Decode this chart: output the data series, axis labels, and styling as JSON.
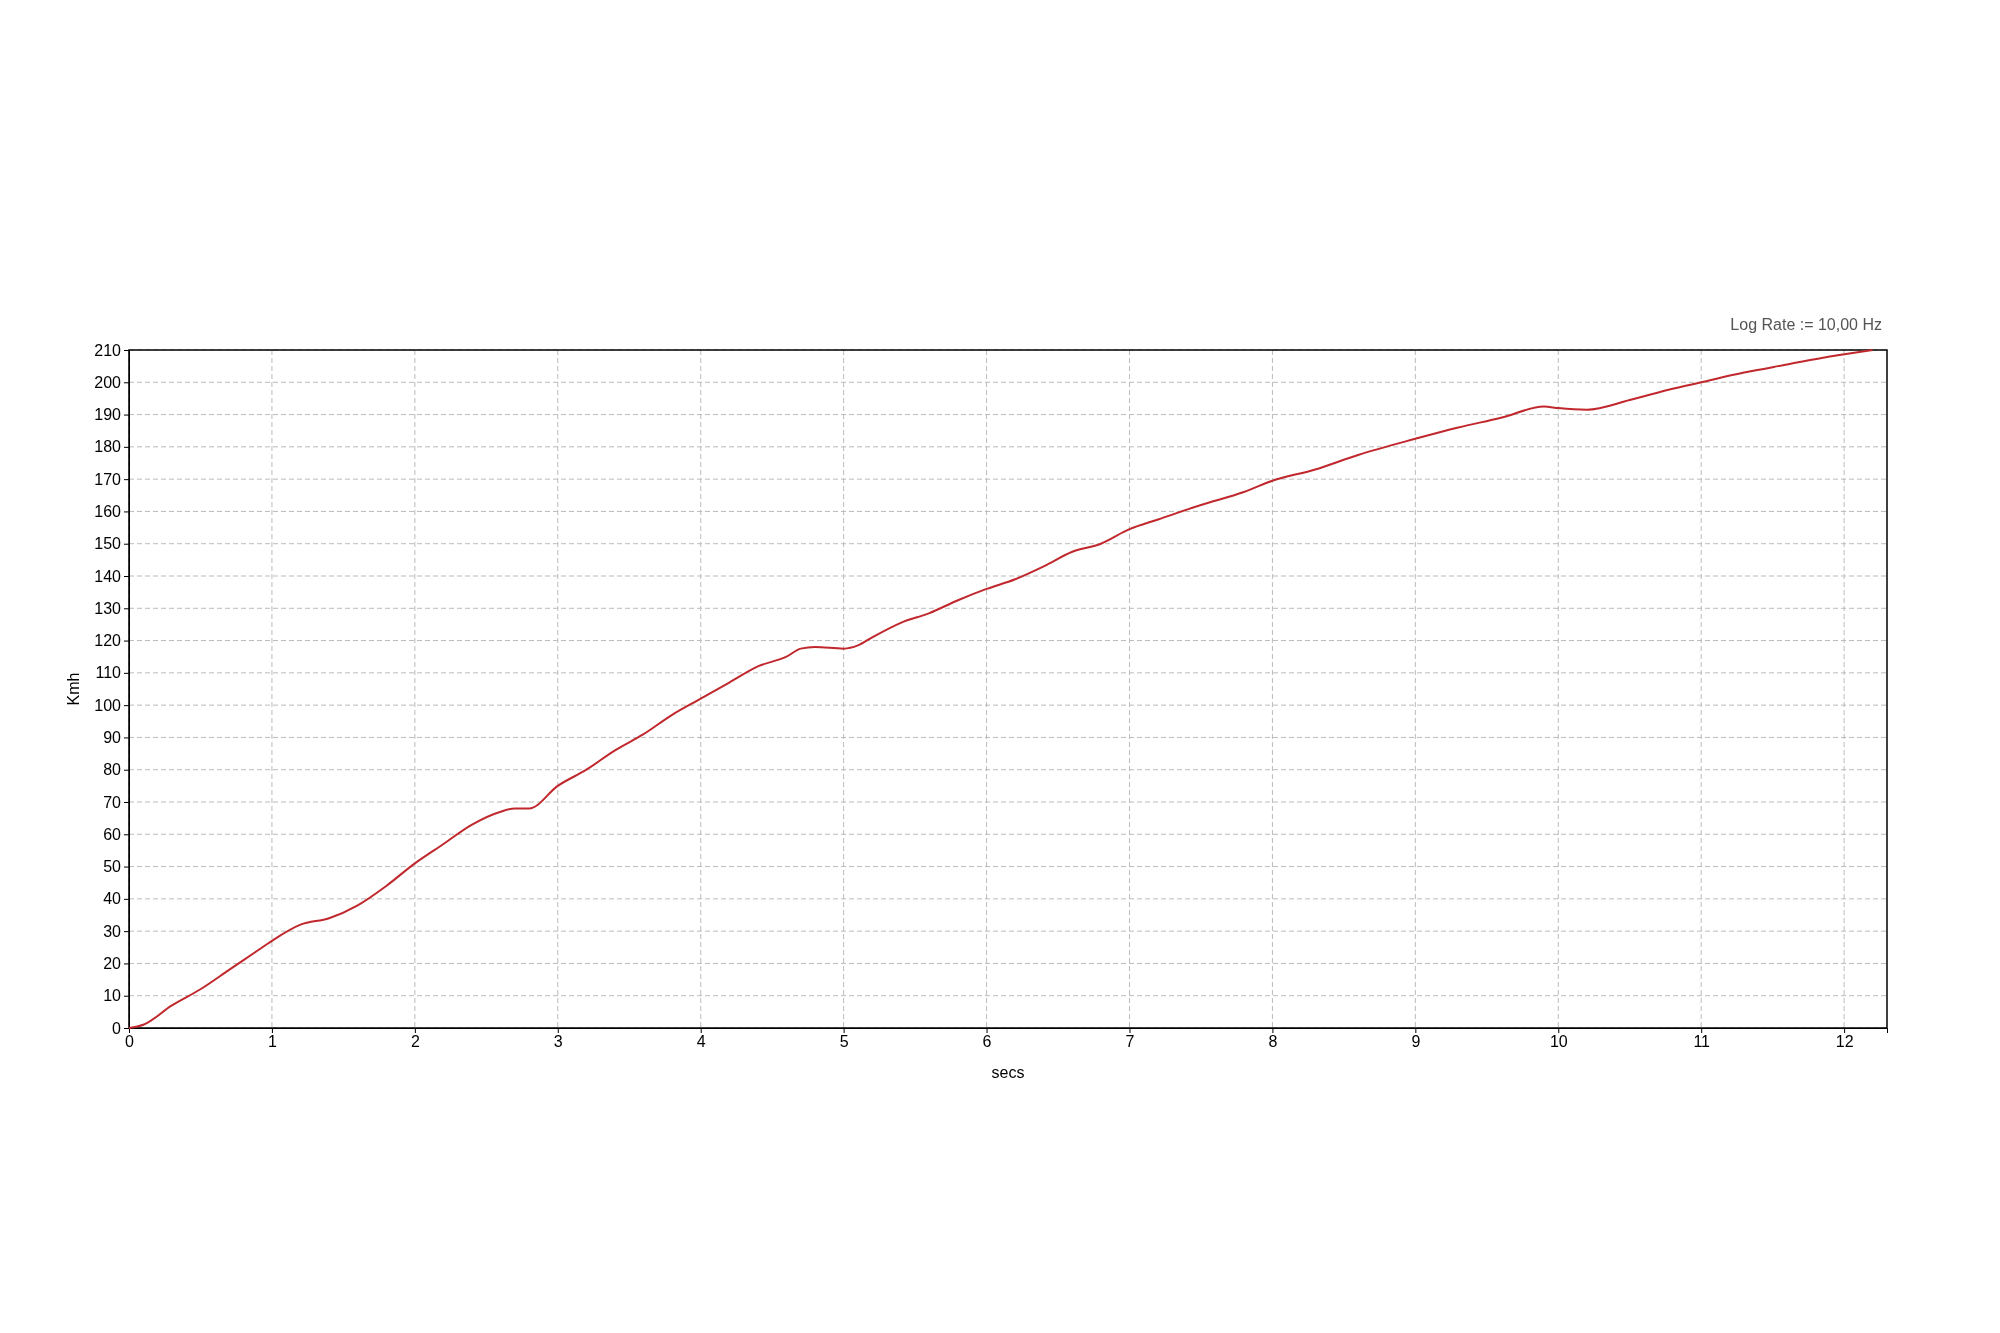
{
  "chart_data": {
    "type": "line",
    "xlabel": "secs",
    "ylabel": "Kmh",
    "annotations": [
      "Log Rate := 10,00 Hz"
    ],
    "xlim": [
      0,
      12.3
    ],
    "xticks": [
      0,
      1,
      2,
      3,
      4,
      5,
      6,
      7,
      8,
      9,
      10,
      11,
      12
    ],
    "ylim": [
      0,
      210
    ],
    "yticks": [
      0,
      10,
      20,
      30,
      40,
      50,
      60,
      70,
      80,
      90,
      100,
      110,
      120,
      130,
      140,
      150,
      160,
      170,
      180,
      190,
      200,
      210
    ],
    "grid": true,
    "series": [
      {
        "color": "#c0282d",
        "x": [
          0,
          0.1,
          0.3,
          0.5,
          0.7,
          0.9,
          1.0,
          1.2,
          1.4,
          1.6,
          1.8,
          2.0,
          2.2,
          2.4,
          2.6,
          2.7,
          2.8,
          3.0,
          3.2,
          3.4,
          3.6,
          3.8,
          4.0,
          4.2,
          4.4,
          4.6,
          4.7,
          4.8,
          5.0,
          5.1,
          5.2,
          5.4,
          5.6,
          5.8,
          6.0,
          6.2,
          6.4,
          6.6,
          6.8,
          7.0,
          7.2,
          7.5,
          7.8,
          8.0,
          8.3,
          8.6,
          9.0,
          9.3,
          9.6,
          9.9,
          10.0,
          10.2,
          10.5,
          10.8,
          11.0,
          11.3,
          11.6,
          11.9,
          12.2
        ],
        "values": [
          0,
          1,
          7,
          12,
          18,
          24,
          27,
          32,
          34,
          38,
          44,
          51,
          57,
          63,
          67,
          68,
          68,
          75,
          80,
          86,
          91,
          97,
          102,
          107,
          112,
          115,
          117.5,
          118,
          117.5,
          118.5,
          121,
          125.5,
          128.5,
          132.5,
          136,
          139,
          143,
          147.5,
          150,
          154.5,
          157.5,
          162,
          166,
          169.5,
          173,
          177.5,
          182.5,
          186,
          189,
          192.5,
          192,
          191.5,
          194.5,
          198,
          200,
          203,
          205.5,
          208,
          210
        ]
      }
    ]
  }
}
